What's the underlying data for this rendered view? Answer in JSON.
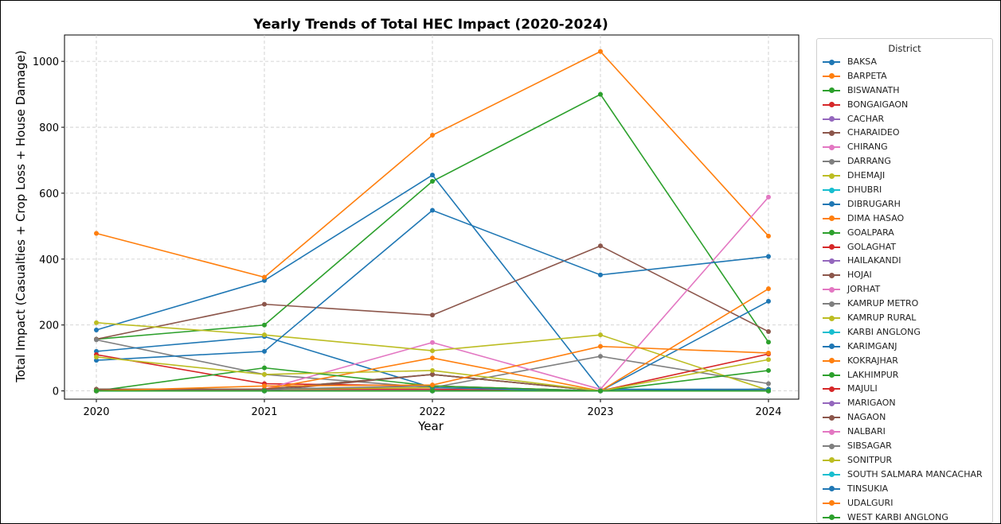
{
  "chart_data": {
    "type": "line",
    "title": "Yearly Trends of Total HEC Impact (2020-2024)",
    "xlabel": "Year",
    "ylabel": "Total Impact (Casualties + Crop Loss + House Damage)",
    "x": [
      "2020",
      "2021",
      "2022",
      "2023",
      "2024"
    ],
    "yticks": [
      0,
      200,
      400,
      600,
      800,
      1000
    ],
    "ylim": [
      -25,
      1080
    ],
    "grid": true,
    "legend_title": "District",
    "legend_position": "right",
    "series": [
      {
        "name": "BAKSA",
        "color": "#1f77b4",
        "values": [
          185,
          335,
          655,
          5,
          5
        ]
      },
      {
        "name": "BARPETA",
        "color": "#ff7f0e",
        "values": [
          478,
          345,
          776,
          1030,
          470
        ]
      },
      {
        "name": "BISWANATH",
        "color": "#2ca02c",
        "values": [
          157,
          200,
          636,
          900,
          148
        ]
      },
      {
        "name": "BONGAIGAON",
        "color": "#d62728",
        "values": [
          5,
          5,
          5,
          0,
          5
        ]
      },
      {
        "name": "CACHAR",
        "color": "#9467bd",
        "values": [
          0,
          0,
          0,
          0,
          0
        ]
      },
      {
        "name": "CHARAIDEO",
        "color": "#8c564b",
        "values": [
          157,
          263,
          230,
          440,
          180
        ]
      },
      {
        "name": "CHIRANG",
        "color": "#e377c2",
        "values": [
          0,
          0,
          0,
          0,
          0
        ]
      },
      {
        "name": "DARRANG",
        "color": "#7f7f7f",
        "values": [
          155,
          50,
          10,
          105,
          22
        ]
      },
      {
        "name": "DHEMAJI",
        "color": "#bcbd22",
        "values": [
          0,
          5,
          10,
          0,
          5
        ]
      },
      {
        "name": "DHUBRI",
        "color": "#17becf",
        "values": [
          0,
          0,
          0,
          0,
          0
        ]
      },
      {
        "name": "DIBRUGARH",
        "color": "#1f77b4",
        "values": [
          120,
          165,
          10,
          0,
          272
        ]
      },
      {
        "name": "DIMA HASAO",
        "color": "#ff7f0e",
        "values": [
          0,
          0,
          0,
          0,
          0
        ]
      },
      {
        "name": "GOALPARA",
        "color": "#2ca02c",
        "values": [
          5,
          5,
          50,
          0,
          5
        ]
      },
      {
        "name": "GOLAGHAT",
        "color": "#d62728",
        "values": [
          110,
          22,
          15,
          0,
          112
        ]
      },
      {
        "name": "HAILAKANDI",
        "color": "#9467bd",
        "values": [
          0,
          0,
          0,
          0,
          0
        ]
      },
      {
        "name": "HOJAI",
        "color": "#8c564b",
        "values": [
          0,
          0,
          50,
          0,
          0
        ]
      },
      {
        "name": "JORHAT",
        "color": "#e377c2",
        "values": [
          0,
          5,
          147,
          5,
          588
        ]
      },
      {
        "name": "KAMRUP METRO",
        "color": "#7f7f7f",
        "values": [
          0,
          5,
          15,
          0,
          5
        ]
      },
      {
        "name": "KAMRUP RURAL",
        "color": "#bcbd22",
        "values": [
          207,
          170,
          122,
          170,
          2
        ]
      },
      {
        "name": "KARBI ANGLONG",
        "color": "#17becf",
        "values": [
          0,
          0,
          0,
          0,
          0
        ]
      },
      {
        "name": "KARIMGANJ",
        "color": "#1f77b4",
        "values": [
          93,
          120,
          548,
          352,
          408
        ]
      },
      {
        "name": "KOKRAJHAR",
        "color": "#ff7f0e",
        "values": [
          0,
          5,
          100,
          0,
          310
        ]
      },
      {
        "name": "LAKHIMPUR",
        "color": "#2ca02c",
        "values": [
          0,
          70,
          15,
          0,
          62
        ]
      },
      {
        "name": "MAJULI",
        "color": "#d62728",
        "values": [
          0,
          0,
          0,
          0,
          0
        ]
      },
      {
        "name": "MARIGAON",
        "color": "#9467bd",
        "values": [
          0,
          0,
          0,
          0,
          0
        ]
      },
      {
        "name": "NAGAON",
        "color": "#8c564b",
        "values": [
          5,
          5,
          50,
          0,
          5
        ]
      },
      {
        "name": "NALBARI",
        "color": "#e377c2",
        "values": [
          0,
          0,
          0,
          0,
          0
        ]
      },
      {
        "name": "SIBSAGAR",
        "color": "#7f7f7f",
        "values": [
          0,
          0,
          0,
          0,
          0
        ]
      },
      {
        "name": "SONITPUR",
        "color": "#bcbd22",
        "values": [
          103,
          50,
          62,
          0,
          95
        ]
      },
      {
        "name": "SOUTH SALMARA MANCACHAR",
        "color": "#17becf",
        "values": [
          0,
          0,
          0,
          0,
          0
        ]
      },
      {
        "name": "TINSUKIA",
        "color": "#1f77b4",
        "values": [
          0,
          0,
          0,
          0,
          5
        ]
      },
      {
        "name": "UDALGURI",
        "color": "#ff7f0e",
        "values": [
          0,
          15,
          18,
          135,
          115
        ]
      },
      {
        "name": "WEST KARBI ANGLONG",
        "color": "#2ca02c",
        "values": [
          0,
          0,
          0,
          0,
          0
        ]
      }
    ]
  }
}
